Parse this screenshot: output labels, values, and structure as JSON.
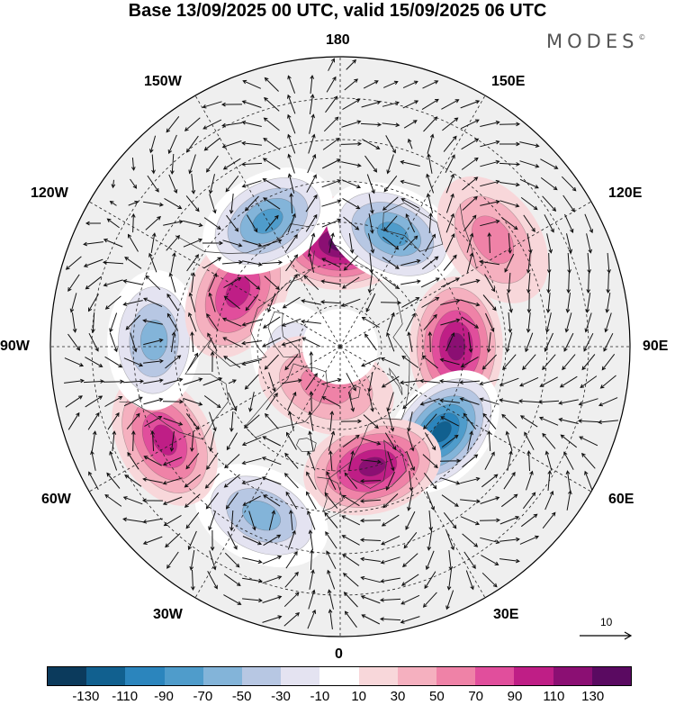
{
  "title": "Base 13/09/2025 00 UTC, valid 15/09/2025 06 UTC",
  "brand": {
    "name": "MODES",
    "mark": "©"
  },
  "longitude_labels": {
    "lon_180": "180",
    "lon_150e": "150E",
    "lon_120e": "120E",
    "lon_90e": "90E",
    "lon_60e": "60E",
    "lon_30e": "30E",
    "lon_0": "0",
    "lon_30w": "30W",
    "lon_60w": "60W",
    "lon_90w": "90W",
    "lon_120w": "120W",
    "lon_150w": "150W"
  },
  "reference_vector": {
    "label": "10"
  },
  "colorbar": {
    "colors": [
      "#0b3a5c",
      "#11608f",
      "#2b85bd",
      "#4f9ccb",
      "#83b4d9",
      "#b7c7e3",
      "#e4e3f1",
      "#ffffff",
      "#f8d7da",
      "#f5b0bf",
      "#ef82a7",
      "#e14e9c",
      "#bf1e86",
      "#8b0f73",
      "#5a0a61"
    ],
    "tick_labels": [
      "-130",
      "-110",
      "-90",
      "-70",
      "-50",
      "-30",
      "-10",
      "10",
      "30",
      "50",
      "70",
      "90",
      "110",
      "130"
    ]
  },
  "map": {
    "projection": "north polar stereographic",
    "field": "geopotential height anomaly with wind vectors",
    "anomaly_centers": [
      {
        "lon": 180,
        "lat": 65,
        "value": 110
      },
      {
        "lon": 155,
        "lat": 60,
        "value": -70
      },
      {
        "lon": 125,
        "lat": 45,
        "value": 30
      },
      {
        "lon": 90,
        "lat": 62,
        "value": 90
      },
      {
        "lon": 50,
        "lat": 58,
        "value": -110
      },
      {
        "lon": 15,
        "lat": 60,
        "value": 90
      },
      {
        "lon": -25,
        "lat": 45,
        "value": -50
      },
      {
        "lon": -62,
        "lat": 42,
        "value": 70
      },
      {
        "lon": -92,
        "lat": 45,
        "value": -50
      },
      {
        "lon": -118,
        "lat": 62,
        "value": 70
      },
      {
        "lon": -150,
        "lat": 55,
        "value": -70
      },
      {
        "lon": -60,
        "lat": 80,
        "value": -30
      },
      {
        "lon": -20,
        "lat": 80,
        "value": 30
      }
    ]
  }
}
